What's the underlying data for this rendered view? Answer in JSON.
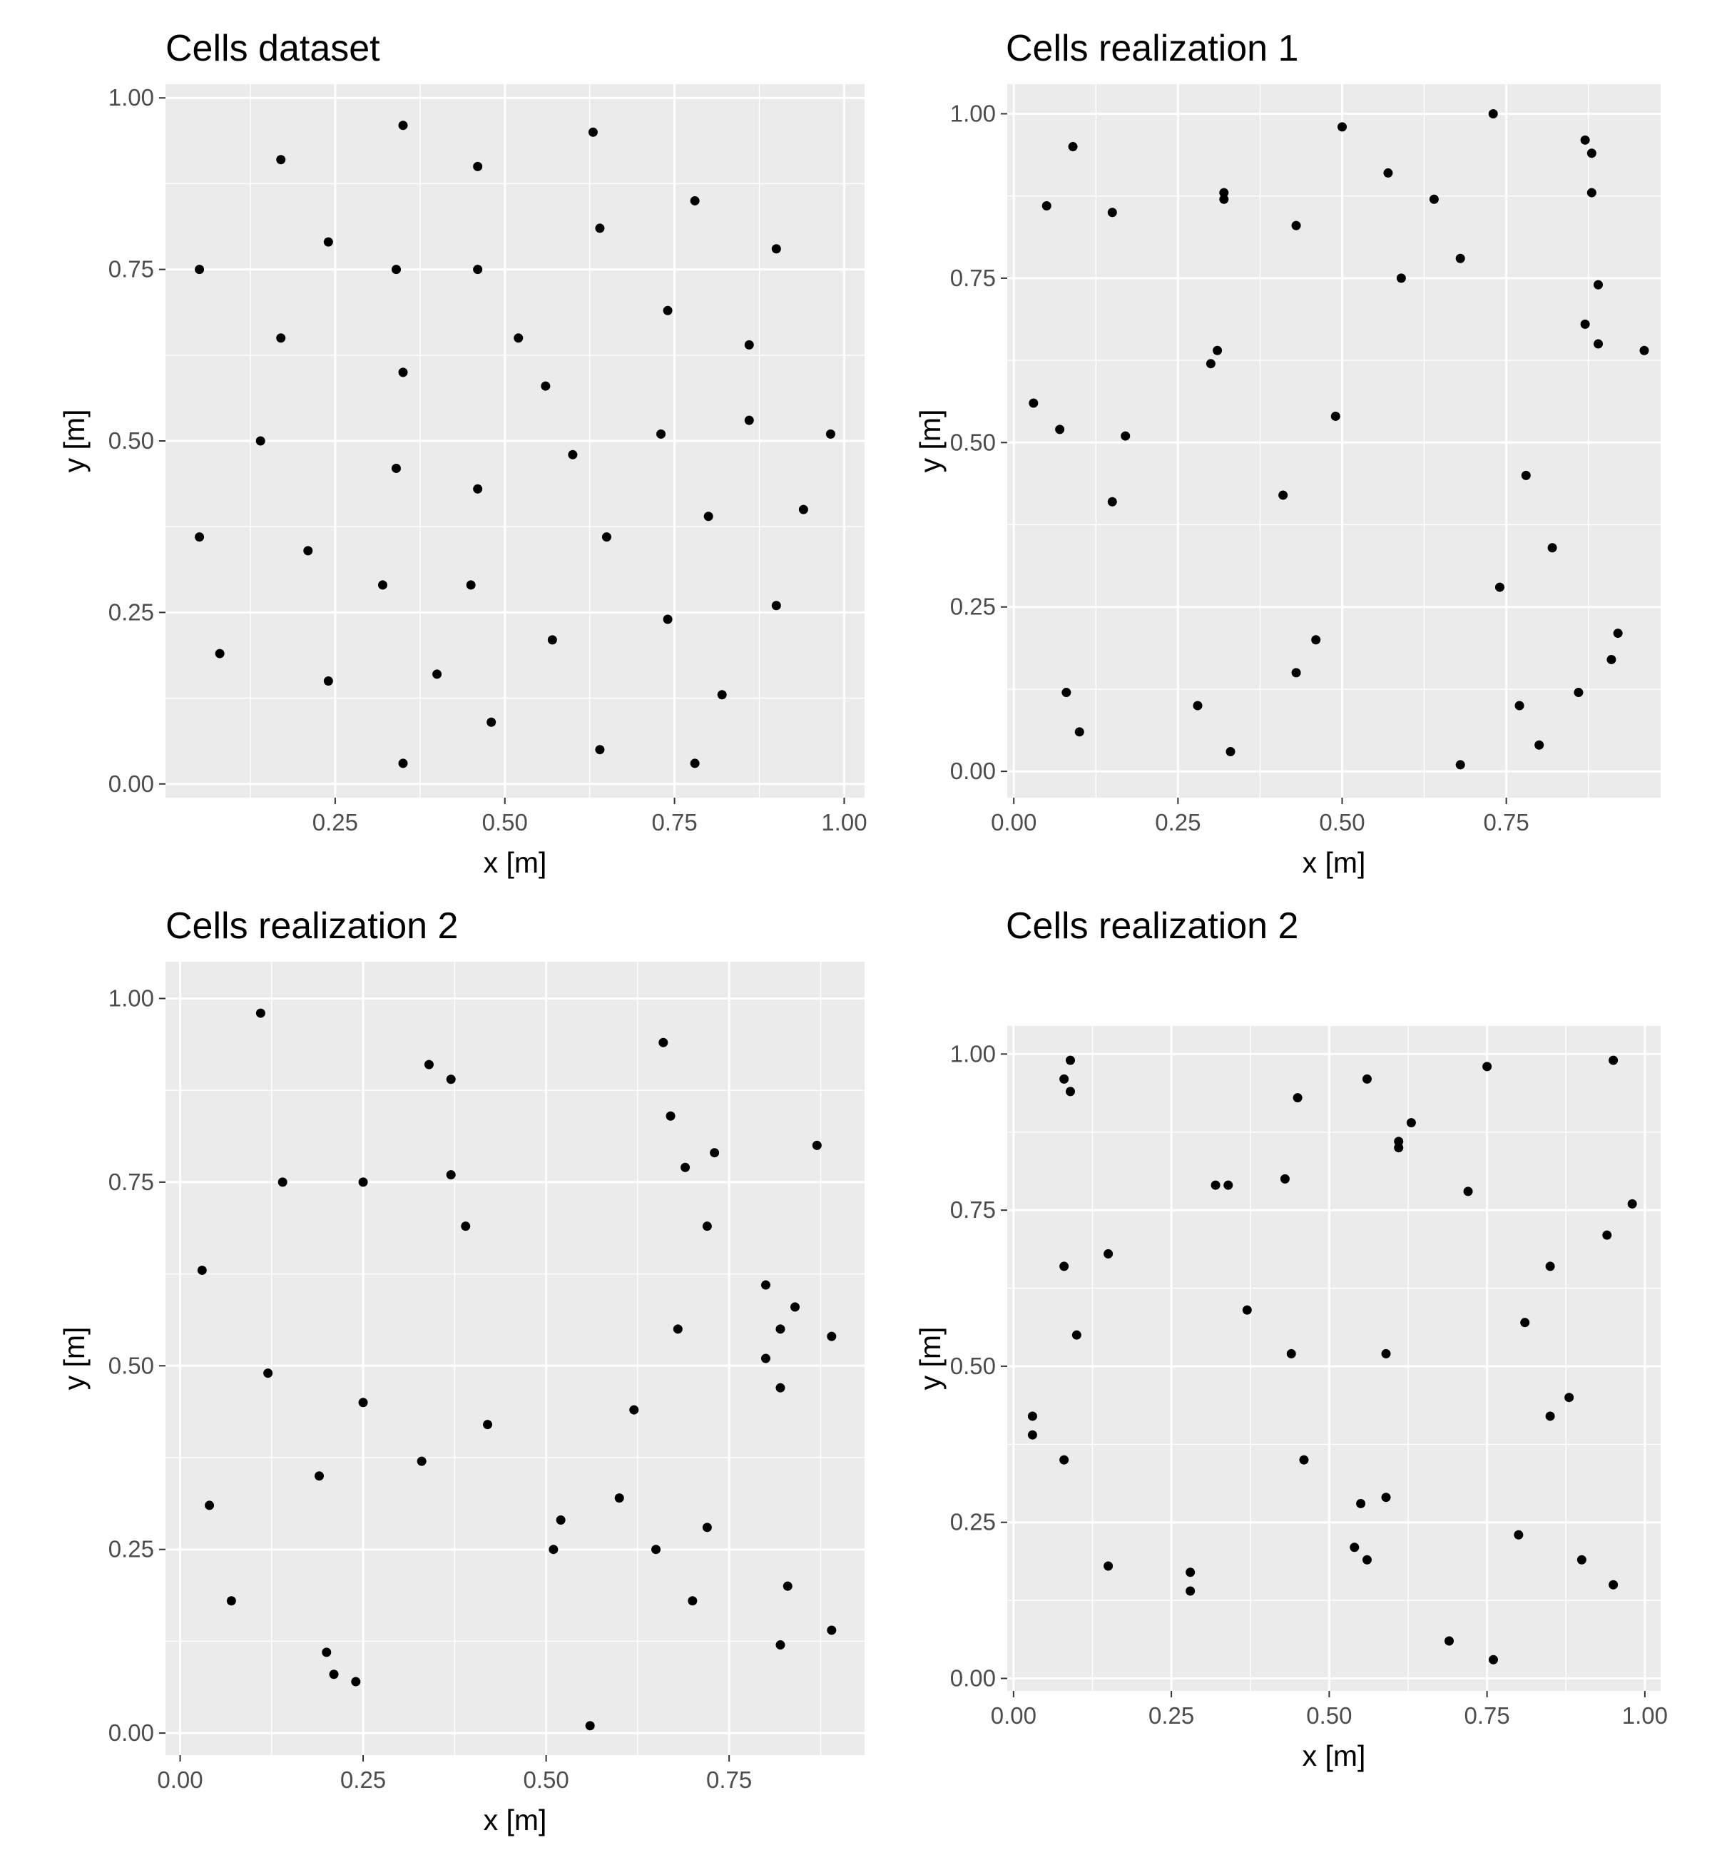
{
  "chart_data": [
    {
      "type": "scatter",
      "title": "Cells dataset",
      "xlabel": "x [m]",
      "ylabel": "y [m]",
      "xlim": [
        0.0,
        1.03
      ],
      "ylim": [
        -0.02,
        1.02
      ],
      "xticks": [
        "0.25",
        "0.50",
        "0.75",
        "1.00"
      ],
      "yticks": [
        "0.00",
        "0.25",
        "0.50",
        "0.75",
        "1.00"
      ],
      "grid": true,
      "background": "#ebebeb",
      "point_color": "#000000",
      "points": [
        [
          0.35,
          0.96
        ],
        [
          0.63,
          0.95
        ],
        [
          0.17,
          0.91
        ],
        [
          0.46,
          0.9
        ],
        [
          0.78,
          0.85
        ],
        [
          0.64,
          0.81
        ],
        [
          0.24,
          0.79
        ],
        [
          0.9,
          0.78
        ],
        [
          0.05,
          0.75
        ],
        [
          0.34,
          0.75
        ],
        [
          0.46,
          0.75
        ],
        [
          0.74,
          0.69
        ],
        [
          0.17,
          0.65
        ],
        [
          0.52,
          0.65
        ],
        [
          0.86,
          0.64
        ],
        [
          0.35,
          0.6
        ],
        [
          0.56,
          0.58
        ],
        [
          0.86,
          0.53
        ],
        [
          0.73,
          0.51
        ],
        [
          0.98,
          0.51
        ],
        [
          0.14,
          0.5
        ],
        [
          0.6,
          0.48
        ],
        [
          0.34,
          0.46
        ],
        [
          0.46,
          0.43
        ],
        [
          0.94,
          0.4
        ],
        [
          0.8,
          0.39
        ],
        [
          0.05,
          0.36
        ],
        [
          0.65,
          0.36
        ],
        [
          0.21,
          0.34
        ],
        [
          0.32,
          0.29
        ],
        [
          0.45,
          0.29
        ],
        [
          0.9,
          0.26
        ],
        [
          0.74,
          0.24
        ],
        [
          0.57,
          0.21
        ],
        [
          0.08,
          0.19
        ],
        [
          0.4,
          0.16
        ],
        [
          0.24,
          0.15
        ],
        [
          0.82,
          0.13
        ],
        [
          0.48,
          0.09
        ],
        [
          0.64,
          0.05
        ],
        [
          0.35,
          0.03
        ],
        [
          0.78,
          0.03
        ]
      ]
    },
    {
      "type": "scatter",
      "title": "Cells realization 1",
      "xlabel": "x [m]",
      "ylabel": "y [m]",
      "xlim": [
        -0.01,
        0.985
      ],
      "ylim": [
        -0.04,
        1.045
      ],
      "xticks": [
        "0.00",
        "0.25",
        "0.50",
        "0.75"
      ],
      "yticks": [
        "0.00",
        "0.25",
        "0.50",
        "0.75",
        "1.00"
      ],
      "grid": true,
      "background": "#ebebeb",
      "point_color": "#000000",
      "points": [
        [
          0.73,
          1.0
        ],
        [
          0.5,
          0.98
        ],
        [
          0.87,
          0.96
        ],
        [
          0.09,
          0.95
        ],
        [
          0.88,
          0.94
        ],
        [
          0.57,
          0.91
        ],
        [
          0.88,
          0.88
        ],
        [
          0.32,
          0.88
        ],
        [
          0.32,
          0.87
        ],
        [
          0.64,
          0.87
        ],
        [
          0.05,
          0.86
        ],
        [
          0.15,
          0.85
        ],
        [
          0.43,
          0.83
        ],
        [
          0.68,
          0.78
        ],
        [
          0.59,
          0.75
        ],
        [
          0.89,
          0.74
        ],
        [
          0.87,
          0.68
        ],
        [
          0.89,
          0.65
        ],
        [
          0.31,
          0.64
        ],
        [
          0.96,
          0.64
        ],
        [
          0.3,
          0.62
        ],
        [
          0.03,
          0.56
        ],
        [
          0.49,
          0.54
        ],
        [
          0.07,
          0.52
        ],
        [
          0.17,
          0.51
        ],
        [
          0.78,
          0.45
        ],
        [
          0.41,
          0.42
        ],
        [
          0.15,
          0.41
        ],
        [
          0.82,
          0.34
        ],
        [
          0.74,
          0.28
        ],
        [
          0.92,
          0.21
        ],
        [
          0.46,
          0.2
        ],
        [
          0.91,
          0.17
        ],
        [
          0.43,
          0.15
        ],
        [
          0.08,
          0.12
        ],
        [
          0.86,
          0.12
        ],
        [
          0.28,
          0.1
        ],
        [
          0.77,
          0.1
        ],
        [
          0.1,
          0.06
        ],
        [
          0.8,
          0.04
        ],
        [
          0.33,
          0.03
        ],
        [
          0.68,
          0.01
        ]
      ]
    },
    {
      "type": "scatter",
      "title": "Cells realization 2",
      "xlabel": "x [m]",
      "ylabel": "y [m]",
      "xlim": [
        -0.02,
        0.935
      ],
      "ylim": [
        -0.03,
        1.05
      ],
      "xticks": [
        "0.00",
        "0.25",
        "0.50",
        "0.75"
      ],
      "yticks": [
        "0.00",
        "0.25",
        "0.50",
        "0.75",
        "1.00"
      ],
      "grid": true,
      "background": "#ebebeb",
      "point_color": "#000000",
      "points": [
        [
          0.11,
          0.98
        ],
        [
          0.66,
          0.94
        ],
        [
          0.34,
          0.91
        ],
        [
          0.37,
          0.89
        ],
        [
          0.67,
          0.84
        ],
        [
          0.87,
          0.8
        ],
        [
          0.73,
          0.79
        ],
        [
          0.69,
          0.77
        ],
        [
          0.37,
          0.76
        ],
        [
          0.14,
          0.75
        ],
        [
          0.25,
          0.75
        ],
        [
          0.72,
          0.69
        ],
        [
          0.39,
          0.69
        ],
        [
          0.03,
          0.63
        ],
        [
          0.8,
          0.61
        ],
        [
          0.84,
          0.58
        ],
        [
          0.68,
          0.55
        ],
        [
          0.82,
          0.55
        ],
        [
          0.89,
          0.54
        ],
        [
          0.8,
          0.51
        ],
        [
          0.12,
          0.49
        ],
        [
          0.82,
          0.47
        ],
        [
          0.25,
          0.45
        ],
        [
          0.62,
          0.44
        ],
        [
          0.42,
          0.42
        ],
        [
          0.33,
          0.37
        ],
        [
          0.19,
          0.35
        ],
        [
          0.6,
          0.32
        ],
        [
          0.04,
          0.31
        ],
        [
          0.52,
          0.29
        ],
        [
          0.72,
          0.28
        ],
        [
          0.65,
          0.25
        ],
        [
          0.51,
          0.25
        ],
        [
          0.83,
          0.2
        ],
        [
          0.07,
          0.18
        ],
        [
          0.7,
          0.18
        ],
        [
          0.89,
          0.14
        ],
        [
          0.82,
          0.12
        ],
        [
          0.2,
          0.11
        ],
        [
          0.21,
          0.08
        ],
        [
          0.24,
          0.07
        ],
        [
          0.56,
          0.01
        ]
      ]
    },
    {
      "type": "scatter",
      "title": "Cells realization 2",
      "xlabel": "x [m]",
      "ylabel": "y [m]",
      "xlim": [
        -0.01,
        1.025
      ],
      "ylim": [
        -0.02,
        1.045
      ],
      "xticks": [
        "0.00",
        "0.25",
        "0.50",
        "0.75",
        "1.00"
      ],
      "yticks": [
        "0.00",
        "0.25",
        "0.50",
        "0.75",
        "1.00"
      ],
      "grid": true,
      "background": "#ebebeb",
      "point_color": "#000000",
      "points": [
        [
          0.09,
          0.99
        ],
        [
          0.95,
          0.99
        ],
        [
          0.75,
          0.98
        ],
        [
          0.56,
          0.96
        ],
        [
          0.08,
          0.96
        ],
        [
          0.09,
          0.94
        ],
        [
          0.45,
          0.93
        ],
        [
          0.63,
          0.89
        ],
        [
          0.61,
          0.86
        ],
        [
          0.61,
          0.85
        ],
        [
          0.43,
          0.8
        ],
        [
          0.32,
          0.79
        ],
        [
          0.34,
          0.79
        ],
        [
          0.72,
          0.78
        ],
        [
          0.98,
          0.76
        ],
        [
          0.94,
          0.71
        ],
        [
          0.15,
          0.68
        ],
        [
          0.85,
          0.66
        ],
        [
          0.08,
          0.66
        ],
        [
          0.37,
          0.59
        ],
        [
          0.81,
          0.57
        ],
        [
          0.1,
          0.55
        ],
        [
          0.44,
          0.52
        ],
        [
          0.59,
          0.52
        ],
        [
          0.88,
          0.45
        ],
        [
          0.03,
          0.42
        ],
        [
          0.85,
          0.42
        ],
        [
          0.03,
          0.39
        ],
        [
          0.08,
          0.35
        ],
        [
          0.46,
          0.35
        ],
        [
          0.59,
          0.29
        ],
        [
          0.55,
          0.28
        ],
        [
          0.8,
          0.23
        ],
        [
          0.54,
          0.21
        ],
        [
          0.56,
          0.19
        ],
        [
          0.9,
          0.19
        ],
        [
          0.15,
          0.18
        ],
        [
          0.28,
          0.17
        ],
        [
          0.95,
          0.15
        ],
        [
          0.28,
          0.14
        ],
        [
          0.69,
          0.06
        ],
        [
          0.76,
          0.03
        ]
      ]
    }
  ]
}
